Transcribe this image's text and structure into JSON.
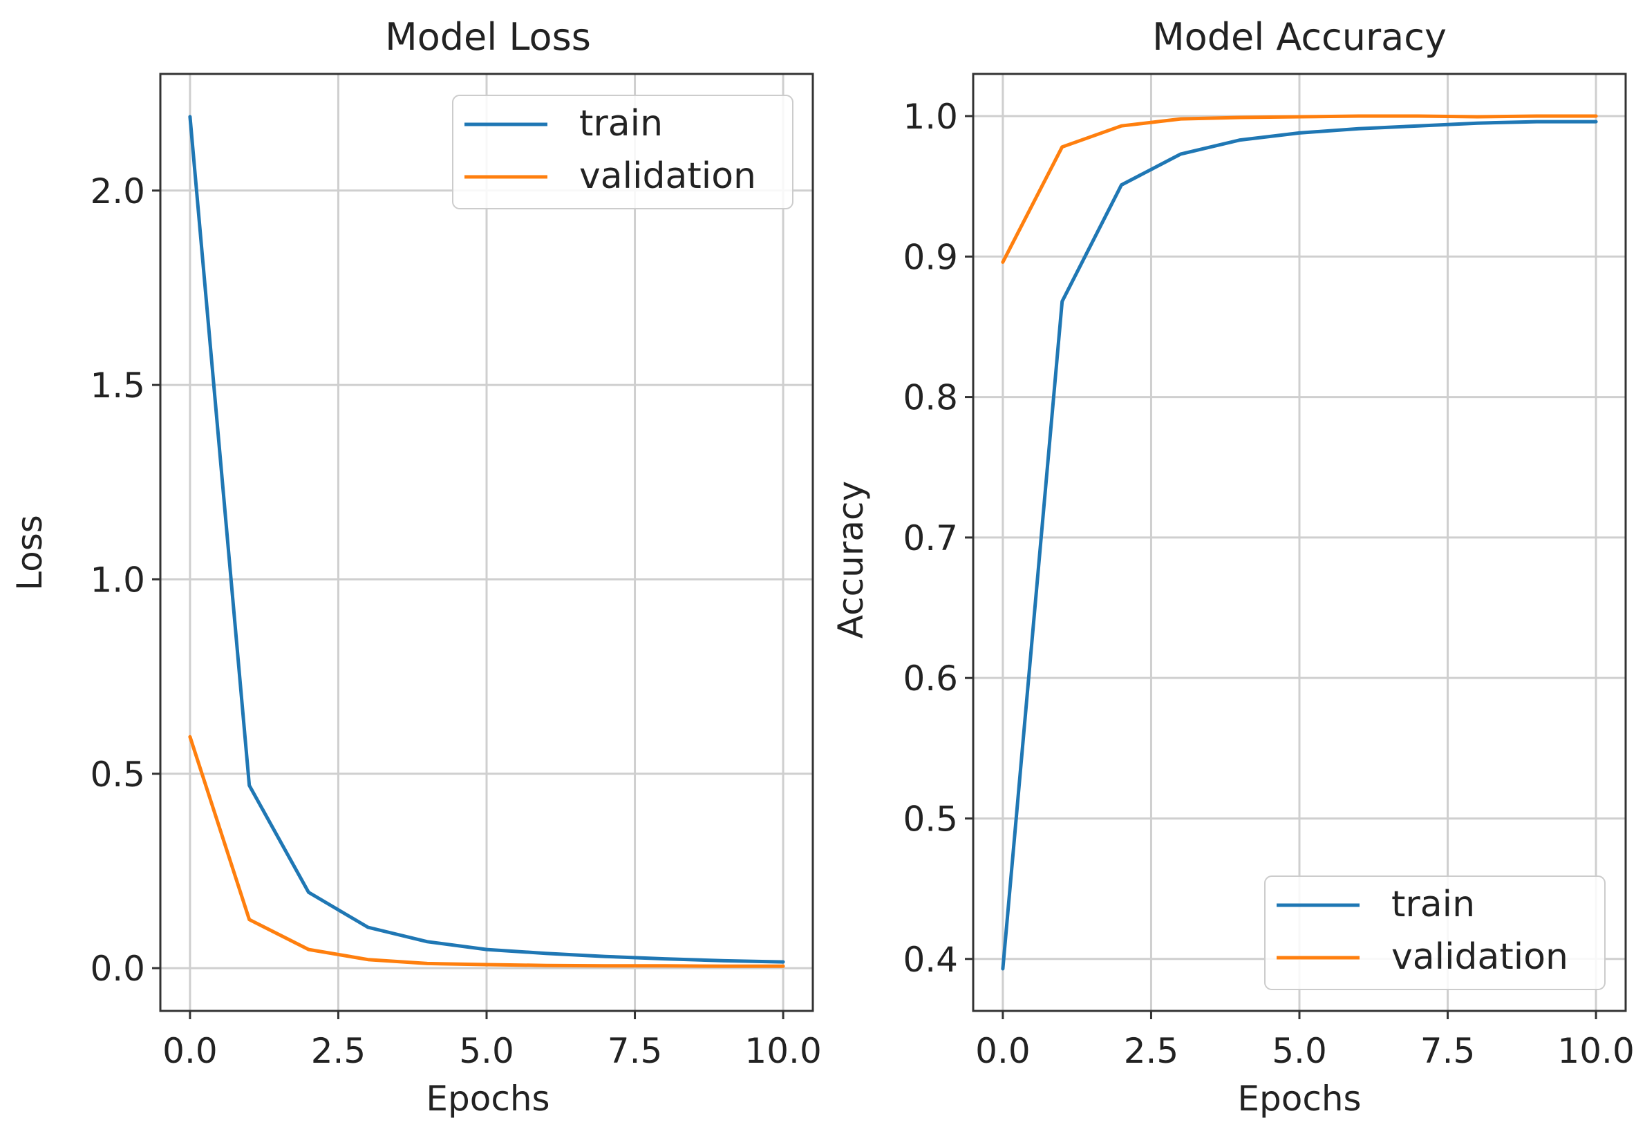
{
  "chart_data": [
    {
      "type": "line",
      "title": "Model Loss",
      "xlabel": "Epochs",
      "ylabel": "Loss",
      "xlim": [
        -0.5,
        10.5
      ],
      "ylim": [
        -0.11,
        2.3
      ],
      "xticks": [
        0.0,
        2.5,
        5.0,
        7.5,
        10.0
      ],
      "xtick_labels": [
        "0.0",
        "2.5",
        "5.0",
        "7.5",
        "10.0"
      ],
      "yticks": [
        0.0,
        0.5,
        1.0,
        1.5,
        2.0
      ],
      "ytick_labels": [
        "0.0",
        "0.5",
        "1.0",
        "1.5",
        "2.0"
      ],
      "grid": true,
      "legend_position": "top-right",
      "x": [
        0,
        1,
        2,
        3,
        4,
        5,
        6,
        7,
        8,
        9,
        10
      ],
      "series": [
        {
          "name": "train",
          "color": "#1f77b4",
          "values": [
            2.19,
            0.47,
            0.195,
            0.105,
            0.068,
            0.048,
            0.038,
            0.03,
            0.024,
            0.019,
            0.016
          ]
        },
        {
          "name": "validation",
          "color": "#ff7f0e",
          "values": [
            0.595,
            0.125,
            0.048,
            0.022,
            0.012,
            0.009,
            0.007,
            0.006,
            0.006,
            0.005,
            0.005
          ]
        }
      ]
    },
    {
      "type": "line",
      "title": "Model Accuracy",
      "xlabel": "Epochs",
      "ylabel": "Accuracy",
      "xlim": [
        -0.5,
        10.5
      ],
      "ylim": [
        0.363,
        1.03
      ],
      "xticks": [
        0.0,
        2.5,
        5.0,
        7.5,
        10.0
      ],
      "xtick_labels": [
        "0.0",
        "2.5",
        "5.0",
        "7.5",
        "10.0"
      ],
      "yticks": [
        0.4,
        0.5,
        0.6,
        0.7,
        0.8,
        0.9,
        1.0
      ],
      "ytick_labels": [
        "0.4",
        "0.5",
        "0.6",
        "0.7",
        "0.8",
        "0.9",
        "1.0"
      ],
      "grid": true,
      "legend_position": "bottom-right",
      "x": [
        0,
        1,
        2,
        3,
        4,
        5,
        6,
        7,
        8,
        9,
        10
      ],
      "series": [
        {
          "name": "train",
          "color": "#1f77b4",
          "values": [
            0.393,
            0.868,
            0.951,
            0.973,
            0.983,
            0.988,
            0.991,
            0.993,
            0.995,
            0.996,
            0.996
          ]
        },
        {
          "name": "validation",
          "color": "#ff7f0e",
          "values": [
            0.896,
            0.978,
            0.993,
            0.998,
            0.999,
            0.9995,
            1.0,
            1.0,
            0.9995,
            1.0,
            1.0
          ]
        }
      ]
    }
  ]
}
